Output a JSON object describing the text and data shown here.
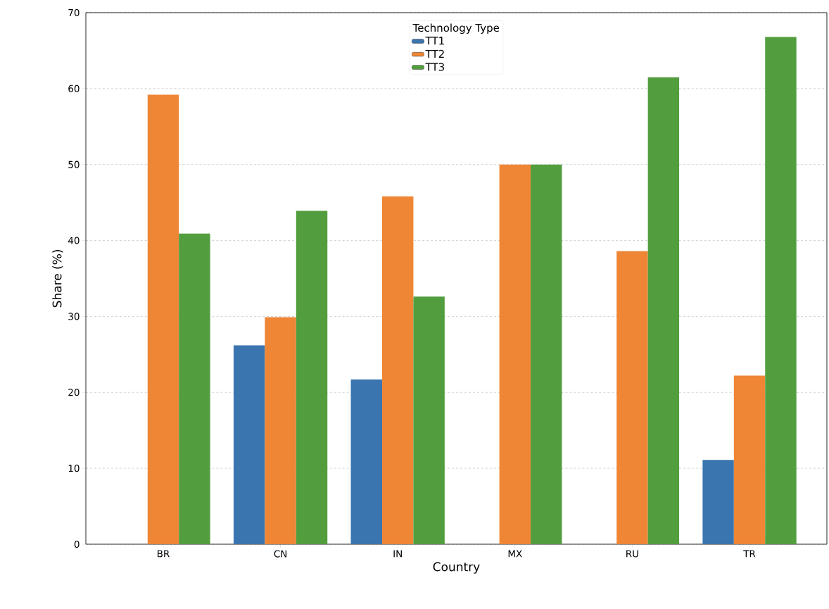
{
  "chart_data": {
    "type": "bar",
    "xlabel": "Country",
    "ylabel": "Share (%)",
    "legend_title": "Technology Type",
    "categories": [
      "BR",
      "CN",
      "IN",
      "MX",
      "RU",
      "TR"
    ],
    "series": [
      {
        "name": "TT1",
        "color": "#3a75af",
        "values": [
          null,
          26.2,
          21.7,
          null,
          null,
          11.1
        ]
      },
      {
        "name": "TT2",
        "color": "#ef8636",
        "values": [
          59.2,
          29.9,
          45.8,
          50.0,
          38.6,
          22.2
        ]
      },
      {
        "name": "TT3",
        "color": "#529e3e",
        "values": [
          40.9,
          43.9,
          32.6,
          50.0,
          61.5,
          66.8
        ]
      }
    ],
    "ylim": [
      0,
      70
    ],
    "yticks": [
      0,
      10,
      20,
      30,
      40,
      50,
      60,
      70
    ],
    "grid": "y",
    "legend": "top"
  }
}
